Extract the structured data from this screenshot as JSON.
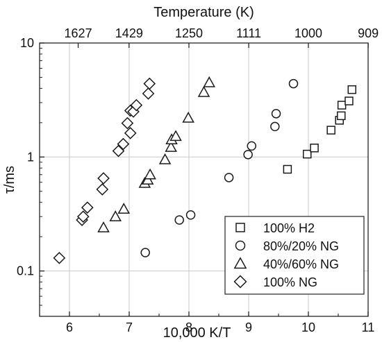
{
  "chart_data": {
    "type": "scatter",
    "title": "",
    "xlabel": "10,000 K/T",
    "ylabel": "τ/ms",
    "top_xlabel": "Temperature (K)",
    "xlim": [
      5.5,
      11
    ],
    "ylim": [
      0.04,
      10
    ],
    "yscale": "log",
    "grid": true,
    "legend_position": "bottom-right",
    "x_ticks": [
      6,
      7,
      8,
      9,
      10,
      11
    ],
    "x_tick_labels": [
      "6",
      "7",
      "8",
      "9",
      "10",
      "11"
    ],
    "y_ticks": [
      0.1,
      1,
      10
    ],
    "y_tick_labels": [
      "0.1",
      "1",
      "10"
    ],
    "top_ticks": [
      6.146,
      6.998,
      8.0,
      9.001,
      10.0,
      11.001
    ],
    "top_tick_labels": [
      "1627",
      "1429",
      "1250",
      "1111",
      "1000",
      "909"
    ],
    "series": [
      {
        "name": "100% H2",
        "marker": "square",
        "points": [
          [
            9.65,
            0.78
          ],
          [
            9.98,
            1.06
          ],
          [
            10.1,
            1.2
          ],
          [
            10.38,
            1.72
          ],
          [
            10.52,
            2.1
          ],
          [
            10.55,
            2.3
          ],
          [
            10.56,
            2.85
          ],
          [
            10.68,
            3.1
          ],
          [
            10.73,
            3.9
          ]
        ]
      },
      {
        "name": "80%/20% NG",
        "marker": "circle",
        "points": [
          [
            7.27,
            0.145
          ],
          [
            7.84,
            0.28
          ],
          [
            8.03,
            0.31
          ],
          [
            8.67,
            0.66
          ],
          [
            8.99,
            1.05
          ],
          [
            9.05,
            1.25
          ],
          [
            9.44,
            1.85
          ],
          [
            9.46,
            2.4
          ],
          [
            9.75,
            4.4
          ]
        ]
      },
      {
        "name": "40%/60% NG",
        "marker": "triangle",
        "points": [
          [
            6.57,
            0.24
          ],
          [
            6.77,
            0.3
          ],
          [
            6.91,
            0.35
          ],
          [
            7.26,
            0.59
          ],
          [
            7.31,
            0.63
          ],
          [
            7.35,
            0.7
          ],
          [
            7.6,
            0.95
          ],
          [
            7.7,
            1.22
          ],
          [
            7.71,
            1.42
          ],
          [
            7.78,
            1.52
          ],
          [
            7.99,
            2.2
          ],
          [
            8.25,
            3.7
          ],
          [
            8.34,
            4.5
          ]
        ]
      },
      {
        "name": "100% NG",
        "marker": "diamond",
        "points": [
          [
            5.83,
            0.13
          ],
          [
            6.21,
            0.28
          ],
          [
            6.23,
            0.3
          ],
          [
            6.3,
            0.36
          ],
          [
            6.55,
            0.52
          ],
          [
            6.57,
            0.65
          ],
          [
            6.82,
            1.13
          ],
          [
            6.9,
            1.3
          ],
          [
            6.97,
            1.98
          ],
          [
            7.02,
            1.62
          ],
          [
            7.02,
            2.55
          ],
          [
            7.07,
            2.5
          ],
          [
            7.12,
            2.85
          ],
          [
            7.32,
            3.6
          ],
          [
            7.34,
            4.4
          ]
        ]
      }
    ]
  }
}
